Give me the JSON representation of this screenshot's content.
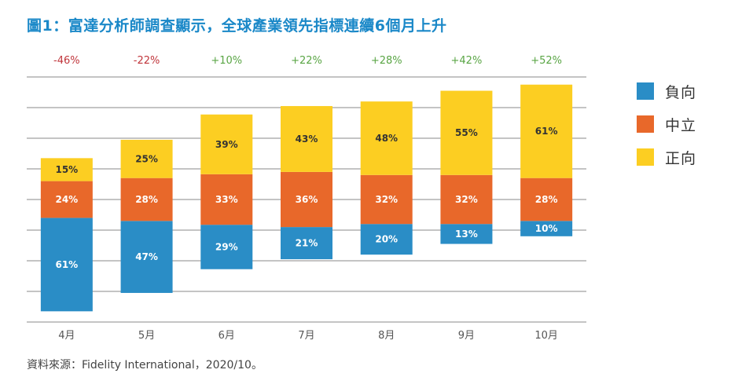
{
  "title": "圖1：富達分析師調查顯示，全球產業領先指標連續6個月上升",
  "source": "資料來源：Fidelity International，2020/10。",
  "chart_data": {
    "type": "bar",
    "stacked": true,
    "diverging": true,
    "categories": [
      "4月",
      "5月",
      "6月",
      "7月",
      "8月",
      "9月",
      "10月"
    ],
    "net_labels": [
      "-46%",
      "-22%",
      "+10%",
      "+22%",
      "+28%",
      "+42%",
      "+52%"
    ],
    "net_colors": {
      "negative": "#c0353b",
      "positive": "#59a544"
    },
    "series": [
      {
        "name": "負向",
        "color": "#2a8dc6",
        "values": [
          61,
          47,
          29,
          21,
          20,
          13,
          10
        ]
      },
      {
        "name": "中立",
        "color": "#e8682a",
        "values": [
          24,
          28,
          33,
          36,
          32,
          32,
          28
        ]
      },
      {
        "name": "正向",
        "color": "#fcce22",
        "values": [
          15,
          25,
          39,
          43,
          48,
          55,
          61
        ]
      }
    ],
    "value_suffix": "%",
    "grid": true,
    "legend_position": "right"
  }
}
